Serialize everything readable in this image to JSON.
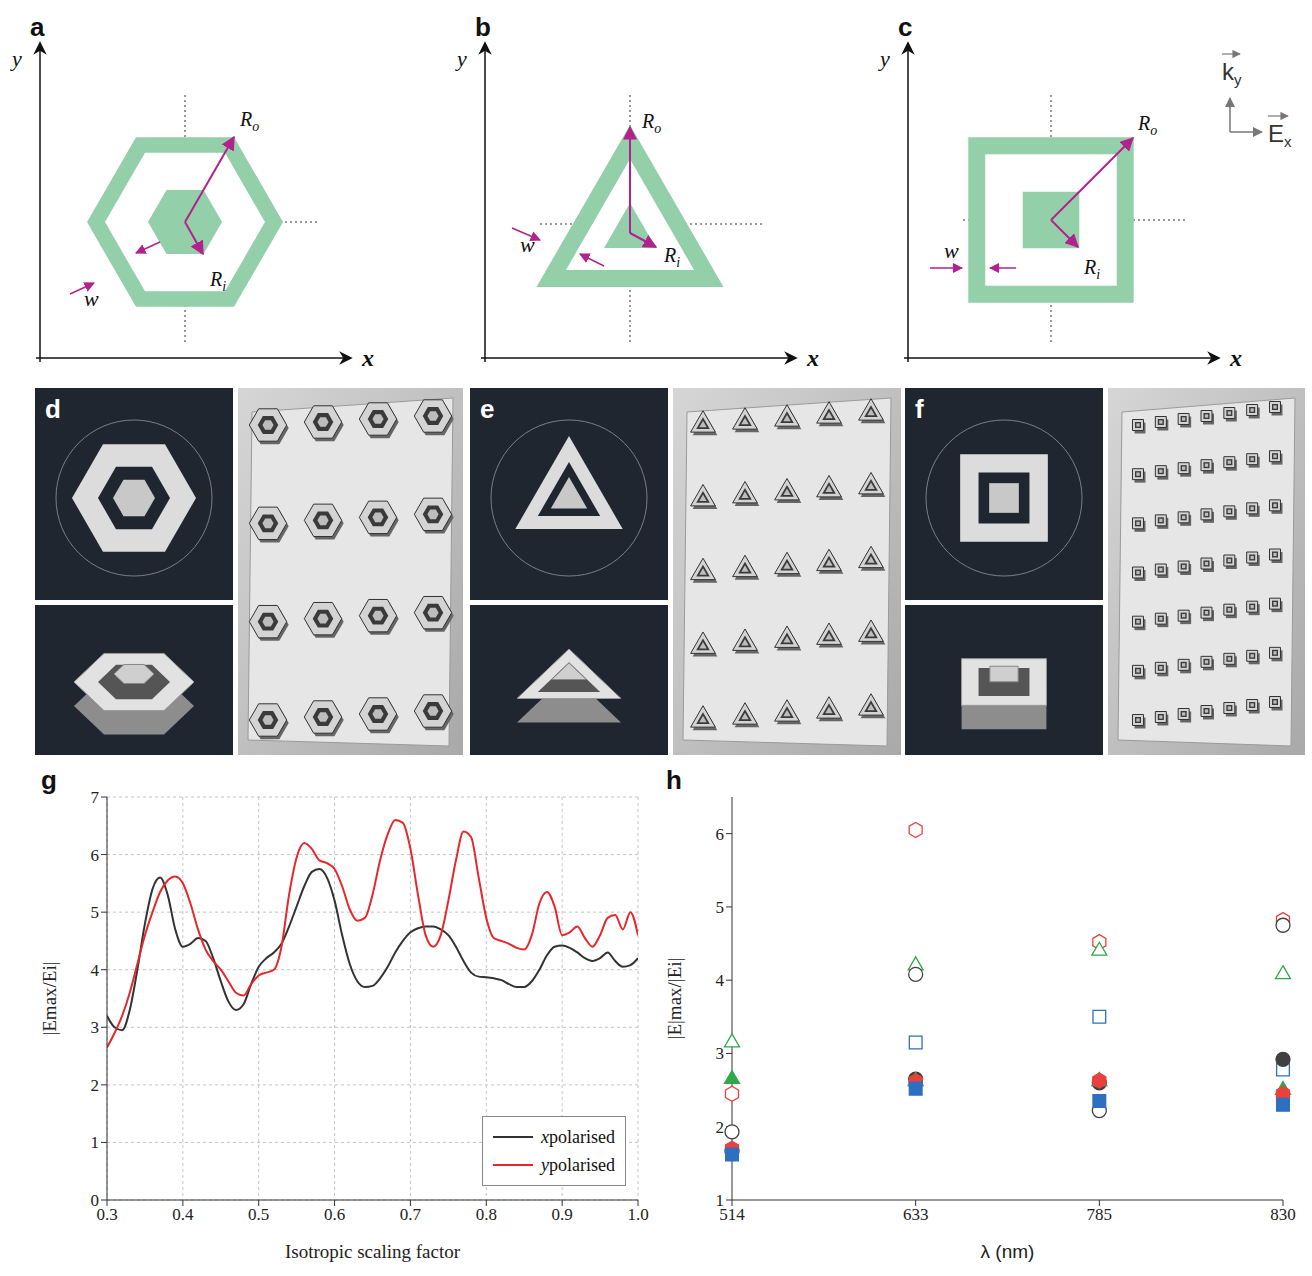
{
  "panels": {
    "schematics": [
      {
        "letter": "a",
        "shape": "hexagon",
        "x_label": "x",
        "y_label": "y",
        "outer_radius": "Ro",
        "inner_radius": "Ri",
        "width": "w"
      },
      {
        "letter": "b",
        "shape": "triangle",
        "x_label": "x",
        "y_label": "y",
        "outer_radius": "Ro",
        "inner_radius": "Ri",
        "width": "w"
      },
      {
        "letter": "c",
        "shape": "square",
        "x_label": "x",
        "y_label": "y",
        "outer_radius": "Ro",
        "inner_radius": "Ri",
        "width": "w"
      }
    ],
    "field_legend": {
      "wave_vector": "ky",
      "field": "Ex"
    },
    "renders": [
      {
        "letter": "d",
        "shape": "hexagon"
      },
      {
        "letter": "e",
        "shape": "triangle"
      },
      {
        "letter": "f",
        "shape": "square"
      }
    ]
  },
  "chart_data": [
    {
      "letter": "g",
      "type": "line",
      "x_label": "Isotropic scaling factor",
      "y_label": "|Emax/Ei|",
      "x": [
        0.3,
        0.31,
        0.32,
        0.33,
        0.34,
        0.35,
        0.36,
        0.37,
        0.38,
        0.39,
        0.4,
        0.41,
        0.42,
        0.43,
        0.44,
        0.45,
        0.46,
        0.47,
        0.48,
        0.49,
        0.5,
        0.51,
        0.52,
        0.53,
        0.54,
        0.55,
        0.56,
        0.57,
        0.58,
        0.59,
        0.6,
        0.61,
        0.62,
        0.63,
        0.64,
        0.65,
        0.66,
        0.67,
        0.68,
        0.69,
        0.7,
        0.71,
        0.72,
        0.73,
        0.74,
        0.75,
        0.76,
        0.77,
        0.78,
        0.79,
        0.8,
        0.81,
        0.82,
        0.83,
        0.84,
        0.85,
        0.86,
        0.87,
        0.88,
        0.89,
        0.9,
        0.91,
        0.92,
        0.93,
        0.94,
        0.95,
        0.96,
        0.97,
        0.98,
        0.99,
        1.0
      ],
      "series": [
        {
          "name": "x polarised",
          "color": "#333333",
          "values": [
            3.2,
            3.0,
            2.95,
            3.3,
            4.0,
            4.8,
            5.4,
            5.6,
            5.3,
            4.7,
            4.4,
            4.45,
            4.55,
            4.5,
            4.2,
            3.8,
            3.45,
            3.3,
            3.4,
            3.75,
            4.05,
            4.2,
            4.3,
            4.45,
            4.75,
            5.1,
            5.45,
            5.7,
            5.75,
            5.6,
            5.2,
            4.6,
            4.1,
            3.8,
            3.7,
            3.72,
            3.85,
            4.05,
            4.3,
            4.5,
            4.65,
            4.72,
            4.75,
            4.75,
            4.7,
            4.6,
            4.4,
            4.15,
            3.95,
            3.88,
            3.87,
            3.85,
            3.82,
            3.75,
            3.7,
            3.7,
            3.8,
            4.0,
            4.25,
            4.4,
            4.42,
            4.38,
            4.3,
            4.2,
            4.15,
            4.2,
            4.3,
            4.15,
            4.05,
            4.08,
            4.2
          ]
        },
        {
          "name": "y polarised",
          "color": "#e8262b",
          "values": [
            2.65,
            2.9,
            3.2,
            3.6,
            4.1,
            4.6,
            5.0,
            5.35,
            5.55,
            5.62,
            5.5,
            5.15,
            4.7,
            4.35,
            4.15,
            4.0,
            3.8,
            3.6,
            3.55,
            3.75,
            3.9,
            3.95,
            4.0,
            4.4,
            5.3,
            5.95,
            6.2,
            6.1,
            5.9,
            5.85,
            5.75,
            5.45,
            5.05,
            4.85,
            4.9,
            5.3,
            5.9,
            6.35,
            6.6,
            6.55,
            6.1,
            5.3,
            4.6,
            4.4,
            4.6,
            5.2,
            5.9,
            6.4,
            6.3,
            5.6,
            4.9,
            4.55,
            4.5,
            4.45,
            4.38,
            4.35,
            4.6,
            5.15,
            5.35,
            5.1,
            4.6,
            4.65,
            4.75,
            4.55,
            4.4,
            4.6,
            4.9,
            4.95,
            4.7,
            5.0,
            4.6
          ]
        }
      ],
      "xlim": [
        0.3,
        1.0
      ],
      "xticks": [
        0.3,
        0.4,
        0.5,
        0.6,
        0.7,
        0.8,
        0.9,
        {
          "value": 1.0,
          "label": "1.0"
        }
      ],
      "ylim": [
        0,
        7
      ],
      "yticks": [
        0,
        1,
        2,
        3,
        4,
        5,
        6,
        7
      ],
      "grid": true,
      "legend": "bottom-right"
    },
    {
      "letter": "h",
      "type": "scatter",
      "x_label": "λ (nm)",
      "y_label": "|E|max/|Ei|",
      "categories": [
        "514",
        "633",
        "785",
        "830"
      ],
      "series": [
        {
          "color": "#e8423f",
          "marker": "open_hexagon",
          "values": [
            2.45,
            6.05,
            4.52,
            4.82
          ]
        },
        {
          "color": "#2ea84a",
          "marker": "open_triangle",
          "values": [
            3.15,
            4.2,
            4.4,
            4.08
          ]
        },
        {
          "color": "#404040",
          "marker": "open_circle",
          "values": [
            1.93,
            4.08,
            2.22,
            4.75
          ]
        },
        {
          "color": "#2f6fbf",
          "marker": "open_square",
          "values": [
            null,
            3.15,
            3.5,
            2.78
          ]
        },
        {
          "color": "#404040",
          "marker": "filled_circle",
          "values": [
            1.67,
            2.65,
            2.6,
            2.92
          ]
        },
        {
          "color": "#2ea84a",
          "marker": "filled_triangle",
          "values": [
            2.65,
            2.62,
            2.62,
            2.5
          ]
        },
        {
          "color": "#e8423f",
          "marker": "filled_hexagon",
          "values": [
            1.7,
            2.62,
            2.63,
            2.45
          ]
        },
        {
          "color": "#2f6fbf",
          "marker": "filled_square",
          "values": [
            1.62,
            2.52,
            2.35,
            2.3
          ]
        }
      ],
      "ylim": [
        1,
        6.5
      ],
      "yticks": [
        1,
        2,
        3,
        4,
        5,
        6
      ]
    }
  ]
}
